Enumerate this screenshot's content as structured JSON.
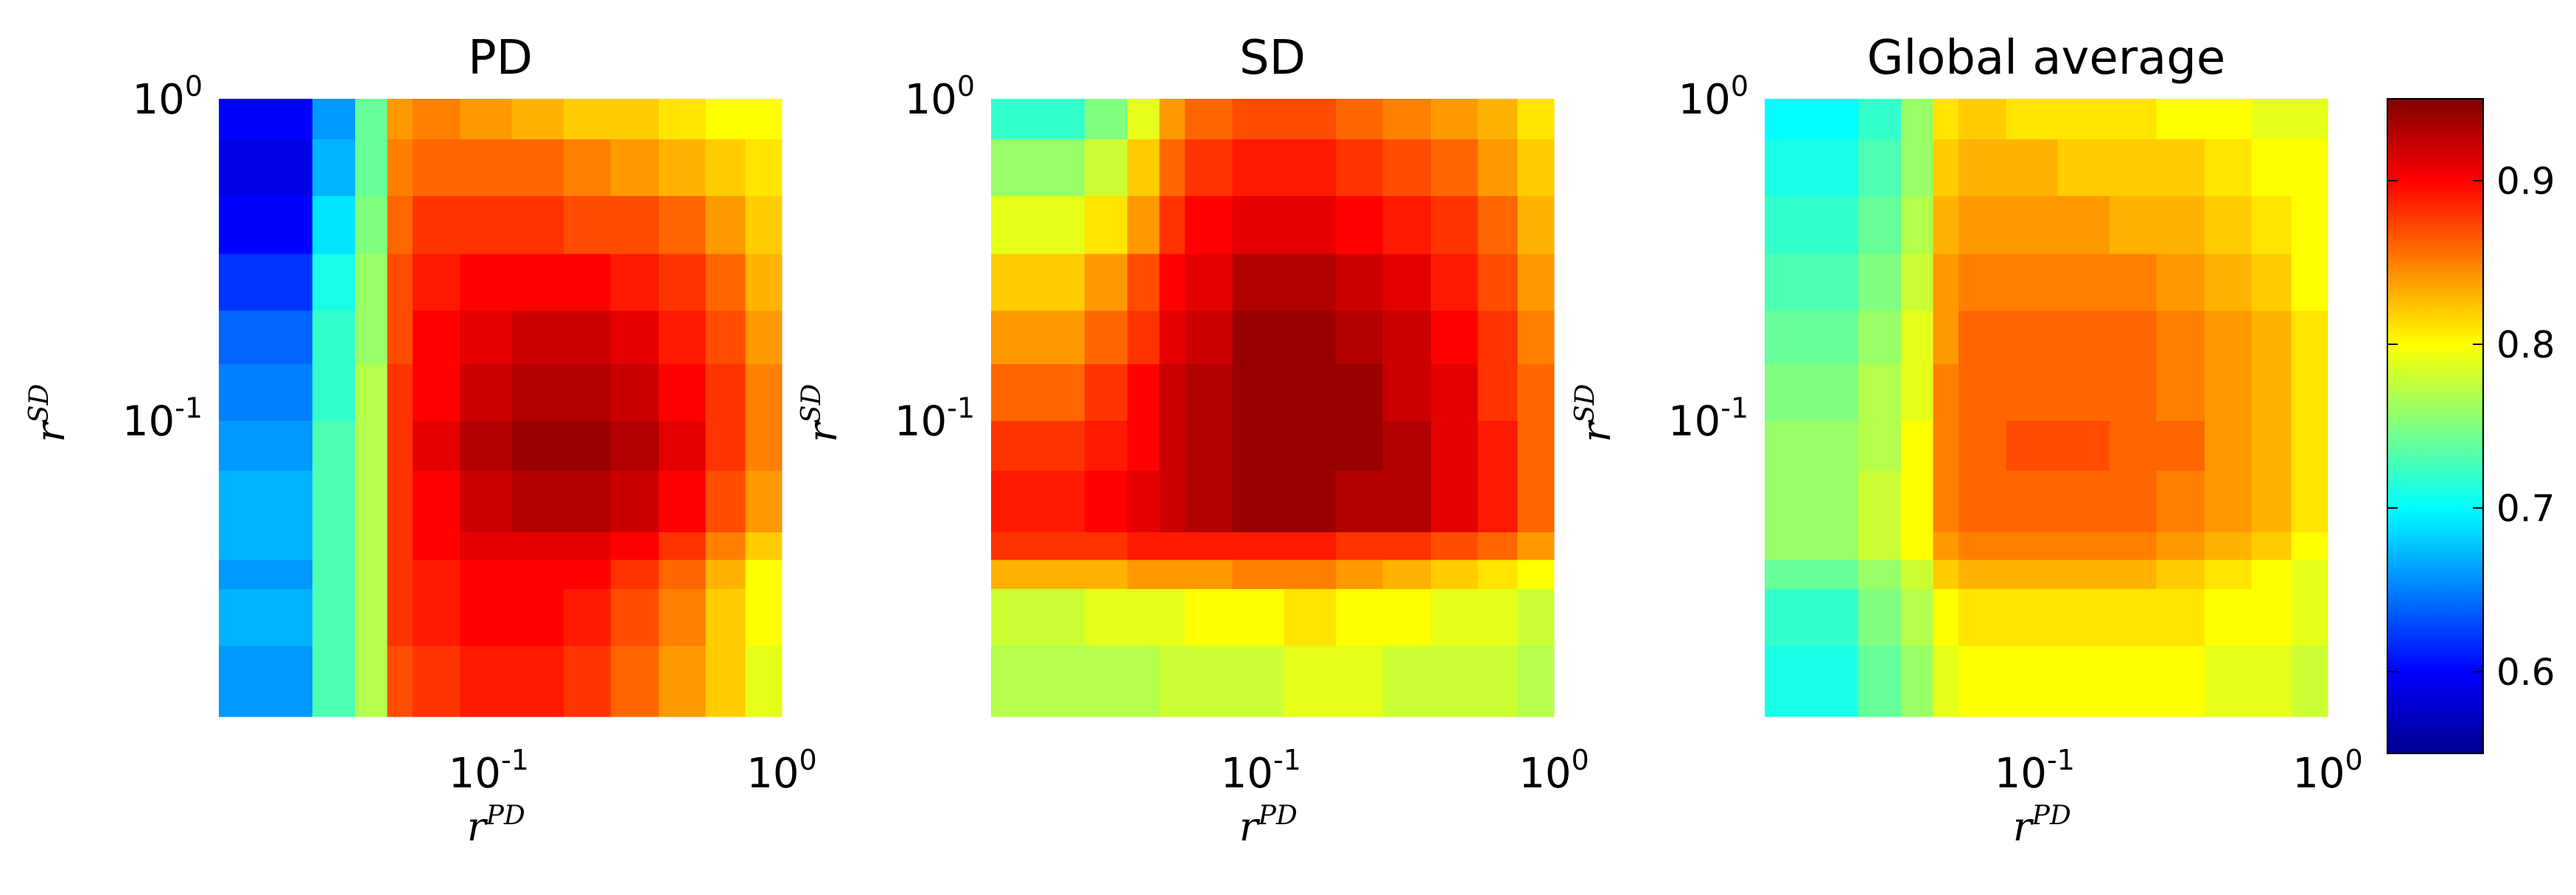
{
  "chart_data": {
    "type": "heatmap",
    "panels": [
      {
        "title": "PD",
        "xlabel": {
          "base": "r",
          "sup": "PD"
        },
        "ylabel": {
          "base": "r",
          "sup": "SD"
        },
        "xscale": "log",
        "yscale": "log",
        "xlim": [
          0.012,
          1
        ],
        "ylim": [
          0.012,
          1
        ],
        "x_ticks": [
          {
            "base": "10",
            "exp": "-1"
          },
          {
            "base": "10",
            "exp": "0"
          }
        ],
        "y_ticks": [
          {
            "base": "10",
            "exp": "-1"
          },
          {
            "base": "10",
            "exp": "0"
          }
        ],
        "x_tick_values": [
          0.1,
          1
        ],
        "y_tick_values": [
          0.1,
          1
        ],
        "x_edges": [
          0.012,
          0.025,
          0.035,
          0.045,
          0.055,
          0.08,
          0.12,
          0.18,
          0.26,
          0.38,
          0.55,
          0.75,
          1.0
        ],
        "y_edges": [
          0.012,
          0.02,
          0.03,
          0.037,
          0.045,
          0.07,
          0.1,
          0.15,
          0.22,
          0.33,
          0.5,
          0.75,
          1.0
        ],
        "z": [
          [
            0.66,
            0.73,
            0.77,
            0.87,
            0.88,
            0.89,
            0.89,
            0.88,
            0.86,
            0.84,
            0.82,
            0.79
          ],
          [
            0.67,
            0.73,
            0.77,
            0.88,
            0.89,
            0.9,
            0.9,
            0.89,
            0.87,
            0.85,
            0.82,
            0.8
          ],
          [
            0.66,
            0.73,
            0.77,
            0.88,
            0.89,
            0.9,
            0.9,
            0.9,
            0.88,
            0.86,
            0.83,
            0.8
          ],
          [
            0.67,
            0.73,
            0.77,
            0.88,
            0.9,
            0.91,
            0.91,
            0.91,
            0.9,
            0.88,
            0.85,
            0.82
          ],
          [
            0.67,
            0.73,
            0.77,
            0.88,
            0.9,
            0.92,
            0.93,
            0.93,
            0.92,
            0.9,
            0.87,
            0.84
          ],
          [
            0.66,
            0.73,
            0.77,
            0.88,
            0.91,
            0.93,
            0.94,
            0.94,
            0.93,
            0.91,
            0.88,
            0.85
          ],
          [
            0.65,
            0.72,
            0.77,
            0.88,
            0.9,
            0.92,
            0.93,
            0.93,
            0.92,
            0.9,
            0.88,
            0.85
          ],
          [
            0.64,
            0.72,
            0.76,
            0.87,
            0.9,
            0.91,
            0.92,
            0.92,
            0.91,
            0.89,
            0.87,
            0.84
          ],
          [
            0.62,
            0.71,
            0.76,
            0.87,
            0.89,
            0.9,
            0.9,
            0.9,
            0.89,
            0.88,
            0.86,
            0.83
          ],
          [
            0.6,
            0.69,
            0.75,
            0.86,
            0.88,
            0.88,
            0.88,
            0.87,
            0.87,
            0.86,
            0.84,
            0.82
          ],
          [
            0.59,
            0.67,
            0.74,
            0.85,
            0.86,
            0.86,
            0.86,
            0.85,
            0.84,
            0.83,
            0.82,
            0.81
          ],
          [
            0.6,
            0.66,
            0.74,
            0.84,
            0.85,
            0.84,
            0.83,
            0.82,
            0.82,
            0.81,
            0.8,
            0.8
          ]
        ]
      },
      {
        "title": "SD",
        "xlabel": {
          "base": "r",
          "sup": "PD"
        },
        "ylabel": {
          "base": "r",
          "sup": "SD"
        },
        "xscale": "log",
        "yscale": "log",
        "xlim": [
          0.012,
          1
        ],
        "ylim": [
          0.012,
          1
        ],
        "x_ticks": [
          {
            "base": "10",
            "exp": "-1"
          },
          {
            "base": "10",
            "exp": "0"
          }
        ],
        "y_ticks": [
          {
            "base": "10",
            "exp": "-1"
          },
          {
            "base": "10",
            "exp": "0"
          }
        ],
        "x_tick_values": [
          0.1,
          1
        ],
        "y_tick_values": [
          0.1,
          1
        ],
        "x_edges": [
          0.012,
          0.025,
          0.035,
          0.045,
          0.055,
          0.08,
          0.12,
          0.18,
          0.26,
          0.38,
          0.55,
          0.75,
          1.0
        ],
        "y_edges": [
          0.012,
          0.02,
          0.03,
          0.037,
          0.045,
          0.07,
          0.1,
          0.15,
          0.22,
          0.33,
          0.5,
          0.75,
          1.0
        ],
        "z": [
          [
            0.77,
            0.77,
            0.77,
            0.78,
            0.78,
            0.78,
            0.79,
            0.79,
            0.78,
            0.78,
            0.78,
            0.77
          ],
          [
            0.78,
            0.79,
            0.79,
            0.79,
            0.8,
            0.8,
            0.81,
            0.8,
            0.8,
            0.79,
            0.79,
            0.78
          ],
          [
            0.83,
            0.83,
            0.84,
            0.84,
            0.84,
            0.85,
            0.85,
            0.84,
            0.83,
            0.82,
            0.81,
            0.8
          ],
          [
            0.88,
            0.88,
            0.89,
            0.89,
            0.89,
            0.89,
            0.89,
            0.88,
            0.88,
            0.87,
            0.86,
            0.84
          ],
          [
            0.89,
            0.9,
            0.91,
            0.92,
            0.93,
            0.94,
            0.94,
            0.93,
            0.93,
            0.91,
            0.89,
            0.86
          ],
          [
            0.88,
            0.89,
            0.9,
            0.92,
            0.93,
            0.94,
            0.94,
            0.94,
            0.93,
            0.91,
            0.89,
            0.86
          ],
          [
            0.86,
            0.88,
            0.9,
            0.92,
            0.93,
            0.94,
            0.94,
            0.94,
            0.92,
            0.91,
            0.88,
            0.86
          ],
          [
            0.84,
            0.86,
            0.88,
            0.91,
            0.92,
            0.94,
            0.94,
            0.93,
            0.92,
            0.9,
            0.88,
            0.85
          ],
          [
            0.82,
            0.84,
            0.87,
            0.9,
            0.91,
            0.93,
            0.93,
            0.92,
            0.91,
            0.89,
            0.87,
            0.84
          ],
          [
            0.79,
            0.81,
            0.84,
            0.88,
            0.9,
            0.91,
            0.91,
            0.9,
            0.89,
            0.88,
            0.86,
            0.83
          ],
          [
            0.76,
            0.78,
            0.82,
            0.86,
            0.88,
            0.89,
            0.89,
            0.88,
            0.87,
            0.86,
            0.84,
            0.82
          ],
          [
            0.72,
            0.75,
            0.79,
            0.84,
            0.86,
            0.87,
            0.87,
            0.86,
            0.85,
            0.84,
            0.83,
            0.81
          ]
        ]
      },
      {
        "title": "Global average",
        "xlabel": {
          "base": "r",
          "sup": "PD"
        },
        "ylabel": {
          "base": "r",
          "sup": "SD"
        },
        "xscale": "log",
        "yscale": "log",
        "xlim": [
          0.012,
          1
        ],
        "ylim": [
          0.012,
          1
        ],
        "x_ticks": [
          {
            "base": "10",
            "exp": "-1"
          },
          {
            "base": "10",
            "exp": "0"
          }
        ],
        "y_ticks": [
          {
            "base": "10",
            "exp": "-1"
          },
          {
            "base": "10",
            "exp": "0"
          }
        ],
        "x_tick_values": [
          0.1,
          1
        ],
        "y_tick_values": [
          0.1,
          1
        ],
        "x_edges": [
          0.012,
          0.025,
          0.035,
          0.045,
          0.055,
          0.08,
          0.12,
          0.18,
          0.26,
          0.38,
          0.55,
          0.75,
          1.0
        ],
        "y_edges": [
          0.012,
          0.02,
          0.03,
          0.037,
          0.045,
          0.07,
          0.1,
          0.15,
          0.22,
          0.33,
          0.5,
          0.75,
          1.0
        ],
        "z": [
          [
            0.71,
            0.74,
            0.76,
            0.79,
            0.8,
            0.8,
            0.8,
            0.8,
            0.8,
            0.79,
            0.79,
            0.78
          ],
          [
            0.72,
            0.75,
            0.77,
            0.8,
            0.81,
            0.81,
            0.81,
            0.81,
            0.81,
            0.8,
            0.8,
            0.79
          ],
          [
            0.74,
            0.76,
            0.78,
            0.82,
            0.83,
            0.83,
            0.83,
            0.83,
            0.82,
            0.81,
            0.8,
            0.79
          ],
          [
            0.76,
            0.78,
            0.8,
            0.84,
            0.85,
            0.85,
            0.85,
            0.85,
            0.84,
            0.83,
            0.82,
            0.8
          ],
          [
            0.76,
            0.78,
            0.8,
            0.85,
            0.86,
            0.86,
            0.86,
            0.86,
            0.85,
            0.84,
            0.83,
            0.81
          ],
          [
            0.76,
            0.77,
            0.8,
            0.85,
            0.86,
            0.87,
            0.87,
            0.86,
            0.86,
            0.84,
            0.83,
            0.81
          ],
          [
            0.75,
            0.77,
            0.79,
            0.85,
            0.86,
            0.86,
            0.86,
            0.86,
            0.85,
            0.84,
            0.83,
            0.81
          ],
          [
            0.74,
            0.76,
            0.79,
            0.84,
            0.86,
            0.86,
            0.86,
            0.86,
            0.85,
            0.84,
            0.83,
            0.81
          ],
          [
            0.73,
            0.75,
            0.78,
            0.84,
            0.85,
            0.85,
            0.85,
            0.85,
            0.84,
            0.83,
            0.82,
            0.8
          ],
          [
            0.72,
            0.74,
            0.77,
            0.83,
            0.84,
            0.84,
            0.84,
            0.83,
            0.83,
            0.82,
            0.81,
            0.8
          ],
          [
            0.71,
            0.73,
            0.76,
            0.82,
            0.83,
            0.83,
            0.82,
            0.82,
            0.82,
            0.81,
            0.8,
            0.8
          ],
          [
            0.7,
            0.72,
            0.76,
            0.81,
            0.82,
            0.81,
            0.81,
            0.81,
            0.8,
            0.8,
            0.79,
            0.79
          ]
        ]
      }
    ],
    "colorbar": {
      "colormap": "jet",
      "range": [
        0.55,
        0.95
      ],
      "ticks": [
        "0.6",
        "0.7",
        "0.8",
        "0.9"
      ],
      "tick_values": [
        0.6,
        0.7,
        0.8,
        0.9
      ]
    }
  }
}
